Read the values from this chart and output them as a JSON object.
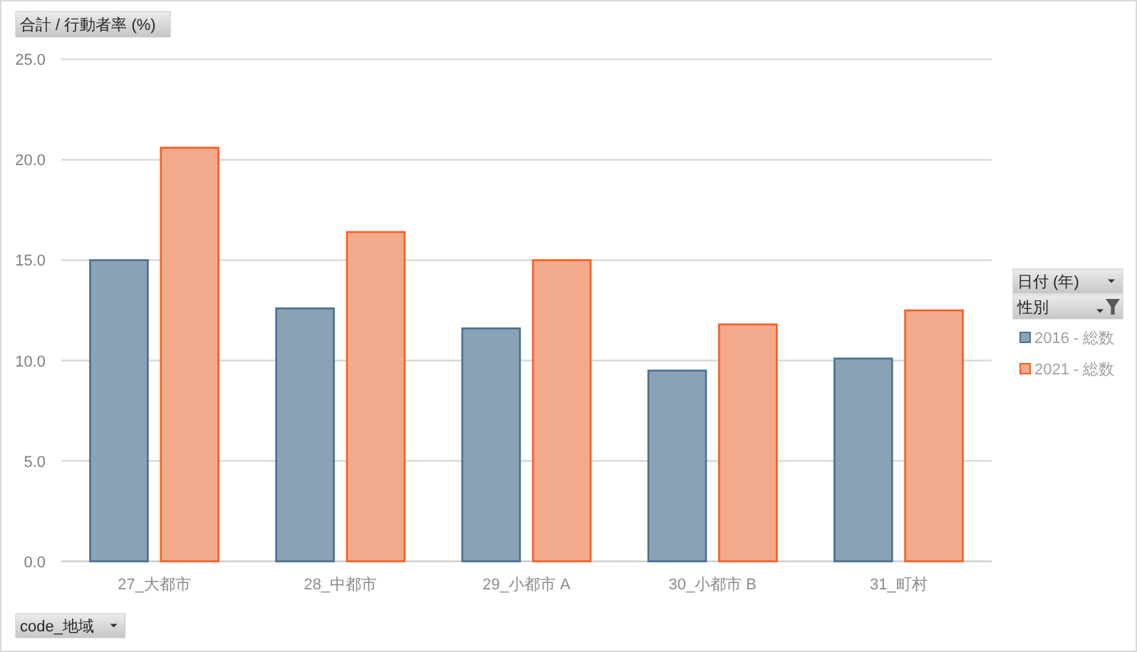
{
  "chart_data": {
    "type": "bar",
    "ylabel": "合計 / 行動者率 (%)",
    "xlabel": "code_地域",
    "annotations": [
      "日付 (年)",
      "性別"
    ],
    "categories": [
      "27_大都市",
      "28_中都市",
      "29_小都市 A",
      "30_小都市 B",
      "31_町村"
    ],
    "series": [
      {
        "name": "2016 - 総数",
        "color": "#8aa2b6",
        "values": [
          15.0,
          12.6,
          11.6,
          9.5,
          10.1
        ]
      },
      {
        "name": "2021 - 総数",
        "color": "#f3a98c",
        "values": [
          20.6,
          16.4,
          15.0,
          11.8,
          12.5
        ]
      }
    ],
    "ylim": [
      0,
      25
    ],
    "yticks": [
      {
        "value": 0,
        "label": "0.0"
      },
      {
        "value": 5,
        "label": "5.0"
      },
      {
        "value": 10,
        "label": "10.0"
      },
      {
        "value": 15,
        "label": "15.0"
      },
      {
        "value": 20,
        "label": "20.0"
      },
      {
        "value": 25,
        "label": "25.0"
      }
    ],
    "grid": "y",
    "legend": "right"
  }
}
